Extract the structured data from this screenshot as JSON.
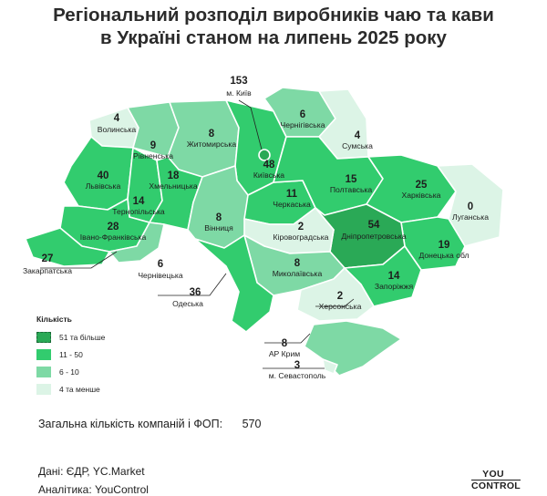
{
  "title": {
    "line1": "Регіональний розподіл виробників чаю та кави",
    "line2": "в Україні станом на липень 2025 року"
  },
  "colors": {
    "c1": "#32cc6e",
    "c2": "#7ed9a5",
    "c3": "#dcf4e6",
    "c4": "#2aa956"
  },
  "regions": [
    {
      "id": "kyiv-city",
      "name": "м. Київ",
      "value": "153"
    },
    {
      "id": "volyn",
      "name": "Волинська",
      "value": "4"
    },
    {
      "id": "rivne",
      "name": "Рівненська",
      "value": "9"
    },
    {
      "id": "zhytomyr",
      "name": "Житомирська",
      "value": "8"
    },
    {
      "id": "chernihiv",
      "name": "Чернігівська",
      "value": "6"
    },
    {
      "id": "sumy",
      "name": "Сумська",
      "value": "4"
    },
    {
      "id": "lviv",
      "name": "Львівська",
      "value": "40"
    },
    {
      "id": "khmelnytskyi",
      "name": "Хмельницька",
      "value": "18"
    },
    {
      "id": "kyiv-oblast",
      "name": "Київська",
      "value": "48"
    },
    {
      "id": "poltava",
      "name": "Полтавська",
      "value": "15"
    },
    {
      "id": "kharkiv",
      "name": "Харківська",
      "value": "25"
    },
    {
      "id": "ternopil",
      "name": "Тернопільська",
      "value": "14"
    },
    {
      "id": "cherkasy",
      "name": "Черкаська",
      "value": "11"
    },
    {
      "id": "luhansk",
      "name": "Луганська",
      "value": "0"
    },
    {
      "id": "ivano-frankivsk",
      "name": "Івано-Франківська",
      "value": "28"
    },
    {
      "id": "vinnytsia",
      "name": "Вінниця",
      "value": "8"
    },
    {
      "id": "kirovohrad",
      "name": "Кіровоградська",
      "value": "2"
    },
    {
      "id": "dnipro",
      "name": "Дніпропетровська",
      "value": "54"
    },
    {
      "id": "donetsk",
      "name": "Донецька обл",
      "value": "19"
    },
    {
      "id": "zakarpattia",
      "name": "Закарпатська",
      "value": "27"
    },
    {
      "id": "chernivtsi",
      "name": "Чернівецька",
      "value": "6"
    },
    {
      "id": "mykolaiv",
      "name": "Миколаївська",
      "value": "8"
    },
    {
      "id": "zaporizhzhia",
      "name": "Запоріжжя",
      "value": "14"
    },
    {
      "id": "odesa",
      "name": "Одеська",
      "value": "36"
    },
    {
      "id": "kherson",
      "name": "Херсонська",
      "value": "2"
    },
    {
      "id": "crimea",
      "name": "АР Крим",
      "value": "8"
    },
    {
      "id": "sevastopol",
      "name": "м. Севастополь",
      "value": "3"
    }
  ],
  "legend": {
    "title": "Кількість",
    "items": [
      {
        "label": "51 та більше",
        "color": "#2aa956"
      },
      {
        "label": "11 - 50",
        "color": "#32cc6e"
      },
      {
        "label": "6 - 10",
        "color": "#7ed9a5"
      },
      {
        "label": "4 та менше",
        "color": "#dcf4e6"
      }
    ]
  },
  "total": {
    "label": "Загальна кількість компаній і ФОП:",
    "value": "570"
  },
  "source": "Дані: ЄДР, YC.Market",
  "analytics": "Аналітика: YouControl",
  "logo": {
    "top": "YOU",
    "bottom": "CONTROL"
  }
}
